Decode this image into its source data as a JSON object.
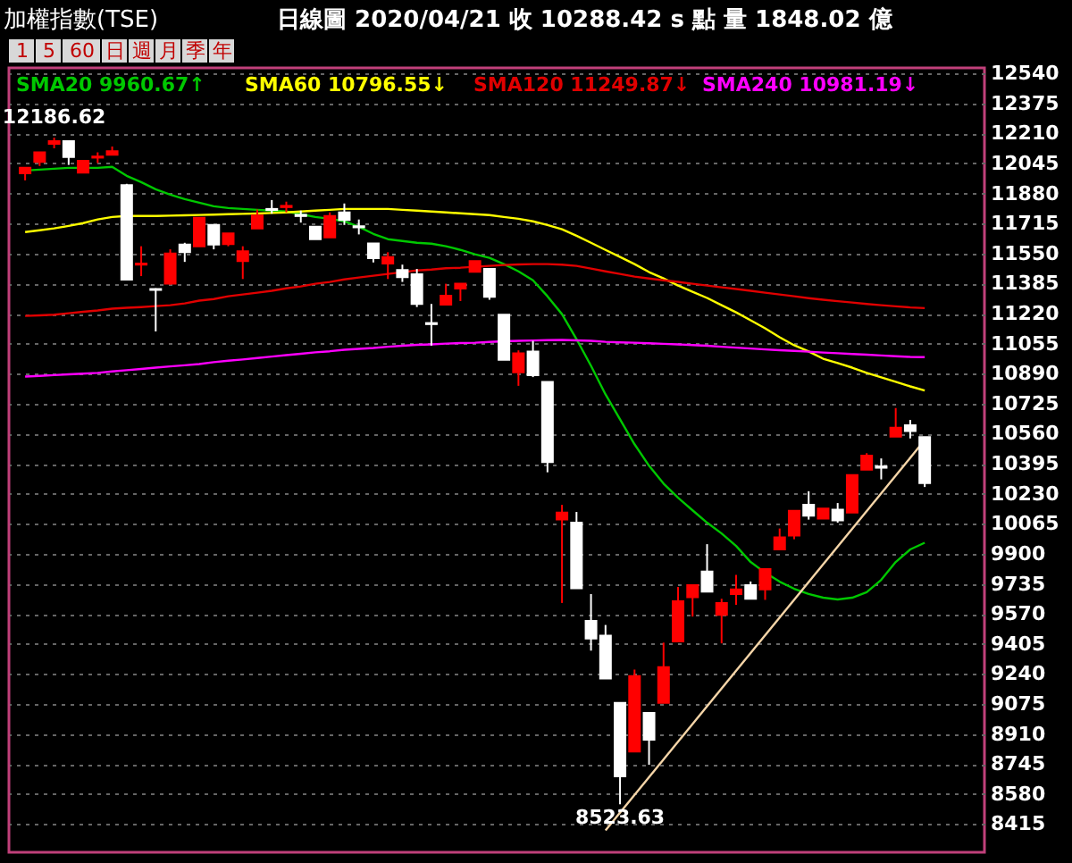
{
  "chart_data": {
    "type": "candlestick",
    "title": "加權指數(TSE)",
    "subtitle": "日線圖 2020/04/21 收 10288.42 s 點 量 1848.02 億",
    "annotations": [
      "1",
      "5",
      "60",
      "日",
      "週",
      "月",
      "季",
      "年",
      {
        "text": "12186.62",
        "y": 12186.62
      },
      {
        "text": "8523.63",
        "y": 8523.63
      }
    ],
    "categories": [
      null,
      null,
      null,
      null,
      null,
      null,
      null,
      null,
      null,
      null,
      null,
      null,
      null,
      null,
      null,
      null,
      null,
      null,
      null,
      null,
      null,
      null,
      null,
      null,
      null,
      null,
      null,
      null,
      null,
      null,
      null,
      null,
      null,
      null,
      null,
      null,
      null,
      null,
      null,
      null,
      null,
      null,
      null,
      null,
      null,
      null,
      null,
      null,
      null,
      null,
      null,
      null,
      null,
      null,
      null,
      null,
      null,
      null,
      null,
      null,
      null,
      null,
      null
    ],
    "ohlc": [
      [
        11991,
        12021,
        11952,
        12021
      ],
      [
        12053,
        12106,
        12031,
        12106
      ],
      [
        12153,
        12186.62,
        12128,
        12168
      ],
      [
        12168,
        12168,
        12037,
        12080
      ],
      [
        11994,
        12060,
        11994,
        12060
      ],
      [
        12077,
        12106,
        12047,
        12083
      ],
      [
        12092,
        12138,
        12092,
        12112
      ],
      [
        11926,
        11933,
        11403,
        11406
      ],
      [
        11489,
        11590,
        11426,
        11495
      ],
      [
        11355,
        11359,
        11122,
        11350
      ],
      [
        11384,
        11573,
        11379,
        11550
      ],
      [
        11599,
        11609,
        11504,
        11557
      ],
      [
        11590,
        11746,
        11590,
        11746
      ],
      [
        11707,
        11707,
        11573,
        11599
      ],
      [
        11602,
        11661,
        11590,
        11661
      ],
      [
        11508,
        11590,
        11410,
        11563
      ],
      [
        11688,
        11792,
        11688,
        11759
      ],
      [
        11795,
        11844,
        11769,
        11789
      ],
      [
        11805,
        11835,
        11776,
        11812
      ],
      [
        11763,
        11786,
        11720,
        11756
      ],
      [
        11697,
        11697,
        11629,
        11629
      ],
      [
        11639,
        11776,
        11639,
        11756
      ],
      [
        11776,
        11825,
        11707,
        11734
      ],
      [
        11700,
        11737,
        11655,
        11694
      ],
      [
        11606,
        11606,
        11501,
        11524
      ],
      [
        11495,
        11557,
        11410,
        11531
      ],
      [
        11459,
        11489,
        11394,
        11420
      ],
      [
        11436,
        11465,
        11256,
        11273
      ],
      [
        11168,
        11273,
        11044,
        11162
      ],
      [
        11269,
        11384,
        11269,
        11318
      ],
      [
        11357,
        11384,
        11289,
        11384
      ],
      [
        11450,
        11508,
        11450,
        11508
      ],
      [
        11465,
        11465,
        11296,
        11312
      ],
      [
        11214,
        11214,
        10966,
        10966
      ],
      [
        10897,
        11018,
        10823,
        11002
      ],
      [
        11012,
        11070,
        10871,
        10881
      ],
      [
        10845,
        10845,
        10348,
        10404
      ],
      [
        10088,
        10169,
        9630,
        10127
      ],
      [
        10071,
        10130,
        9711,
        9711
      ],
      [
        9532,
        9679,
        9368,
        9434
      ],
      [
        9450,
        9509,
        9215,
        9215
      ],
      [
        9081,
        9081,
        8523.63,
        8677
      ],
      [
        8814,
        9264,
        8814,
        9228
      ],
      [
        9026,
        9026,
        8741,
        8879
      ],
      [
        9081,
        9412,
        9081,
        9277
      ],
      [
        9418,
        9718,
        9418,
        9640
      ],
      [
        9662,
        9728,
        9555,
        9728
      ],
      [
        9803,
        9953,
        9692,
        9692
      ],
      [
        9564,
        9653,
        9408,
        9630
      ],
      [
        9679,
        9784,
        9620,
        9705
      ],
      [
        9728,
        9748,
        9653,
        9653
      ],
      [
        9705,
        9816,
        9647,
        9816
      ],
      [
        9924,
        10039,
        9924,
        9990
      ],
      [
        10000,
        10137,
        9980,
        10137
      ],
      [
        10169,
        10244,
        10088,
        10110
      ],
      [
        10094,
        10149,
        10094,
        10149
      ],
      [
        10143,
        10179,
        10071,
        10084
      ],
      [
        10127,
        10333,
        10127,
        10333
      ],
      [
        10362,
        10453,
        10362,
        10440
      ],
      [
        10380,
        10424,
        10309,
        10373
      ],
      [
        10544,
        10701,
        10544,
        10593
      ],
      [
        10607,
        10636,
        10534,
        10574
      ],
      [
        10541,
        10541,
        10267,
        10288.42
      ]
    ],
    "colors": [
      "#ff0000",
      "#ff0000",
      "#ff0000",
      "#ffffff",
      "#ff0000",
      "#ff0000",
      "#ff0000",
      "#ffffff",
      "#ff0000",
      "#ffffff",
      "#ff0000",
      "#ffffff",
      "#ff0000",
      "#ffffff",
      "#ff0000",
      "#ff0000",
      "#ff0000",
      "#ffffff",
      "#ff0000",
      "#ffffff",
      "#ffffff",
      "#ff0000",
      "#ffffff",
      "#ffffff",
      "#ffffff",
      "#ff0000",
      "#ffffff",
      "#ffffff",
      "#ffffff",
      "#ff0000",
      "#ff0000",
      "#ff0000",
      "#ffffff",
      "#ffffff",
      "#ff0000",
      "#ffffff",
      "#ffffff",
      "#ff0000",
      "#ffffff",
      "#ffffff",
      "#ffffff",
      "#ffffff",
      "#ff0000",
      "#ffffff",
      "#ff0000",
      "#ff0000",
      "#ff0000",
      "#ffffff",
      "#ff0000",
      "#ff0000",
      "#ffffff",
      "#ff0000",
      "#ff0000",
      "#ff0000",
      "#ffffff",
      "#ff0000",
      "#ffffff",
      "#ff0000",
      "#ff0000",
      "#ffffff",
      "#ff0000",
      "#ffffff",
      "#ffffff"
    ],
    "series": [
      {
        "type": "line",
        "name": "SMA20 9960.67↑",
        "color": "#00c800",
        "values": [
          12006,
          12011,
          12016,
          12021,
          12021,
          12021,
          12026,
          11977,
          11942,
          11903,
          11874,
          11849,
          11829,
          11810,
          11800,
          11795,
          11790,
          11786,
          11781,
          11766,
          11751,
          11741,
          11727,
          11697,
          11658,
          11629,
          11619,
          11609,
          11604,
          11590,
          11570,
          11546,
          11526,
          11492,
          11452,
          11403,
          11315,
          11217,
          11080,
          10933,
          10776,
          10639,
          10502,
          10384,
          10286,
          10208,
          10139,
          10071,
          10012,
          9943,
          9855,
          9796,
          9747,
          9708,
          9679,
          9659,
          9649,
          9659,
          9689,
          9757,
          9855,
          9924,
          9961
        ]
      },
      {
        "type": "line",
        "name": "SMA60 10796.55↓",
        "color": "#ffff00",
        "values": [
          11668,
          11678,
          11688,
          11702,
          11717,
          11737,
          11751,
          11756,
          11756,
          11756,
          11758,
          11760,
          11762,
          11764,
          11766,
          11768,
          11770,
          11773,
          11776,
          11781,
          11786,
          11790,
          11795,
          11795,
          11795,
          11795,
          11790,
          11786,
          11781,
          11776,
          11771,
          11766,
          11761,
          11751,
          11741,
          11727,
          11707,
          11683,
          11648,
          11609,
          11570,
          11531,
          11492,
          11448,
          11413,
          11374,
          11340,
          11306,
          11266,
          11227,
          11183,
          11139,
          11090,
          11046,
          11012,
          10972,
          10948,
          10923,
          10894,
          10870,
          10845,
          10820,
          10797
        ]
      },
      {
        "type": "line",
        "name": "SMA120 11249.87↓",
        "color": "#e00000",
        "values": [
          11207,
          11210,
          11214,
          11222,
          11230,
          11237,
          11247,
          11252,
          11256,
          11261,
          11266,
          11276,
          11291,
          11300,
          11315,
          11325,
          11335,
          11345,
          11359,
          11369,
          11384,
          11394,
          11408,
          11418,
          11428,
          11438,
          11448,
          11457,
          11462,
          11469,
          11472,
          11477,
          11482,
          11487,
          11490,
          11492,
          11492,
          11489,
          11482,
          11467,
          11452,
          11438,
          11423,
          11413,
          11403,
          11394,
          11384,
          11374,
          11364,
          11355,
          11345,
          11335,
          11325,
          11315,
          11305,
          11296,
          11288,
          11281,
          11273,
          11266,
          11260,
          11254,
          11250
        ]
      },
      {
        "type": "line",
        "name": "SMA240 10981.19↓",
        "color": "#ff00ff",
        "values": [
          10874,
          10878,
          10882,
          10886,
          10890,
          10894,
          10902,
          10909,
          10916,
          10923,
          10930,
          10936,
          10943,
          10953,
          10961,
          10968,
          10976,
          10984,
          10992,
          10999,
          11007,
          11013,
          11021,
          11026,
          11031,
          11038,
          11043,
          11048,
          11051,
          11055,
          11058,
          11060,
          11064,
          11068,
          11070,
          11072,
          11074,
          11075,
          11073,
          11070,
          11065,
          11062,
          11060,
          11057,
          11054,
          11051,
          11047,
          11043,
          11038,
          11033,
          11028,
          11023,
          11019,
          11015,
          11011,
          11006,
          11002,
          10998,
          10994,
          10990,
          10986,
          10982,
          10981
        ]
      },
      {
        "type": "line",
        "color": "#f5d5a8",
        "values": [
          null,
          null,
          null,
          null,
          null,
          null,
          null,
          null,
          null,
          null,
          null,
          null,
          null,
          null,
          null,
          null,
          null,
          null,
          null,
          null,
          null,
          null,
          null,
          null,
          null,
          null,
          null,
          null,
          null,
          null,
          null,
          null,
          null,
          null,
          null,
          null,
          null,
          null,
          null,
          null,
          8380,
          null,
          null,
          null,
          null,
          null,
          null,
          null,
          null,
          null,
          null,
          null,
          null,
          null,
          null,
          null,
          null,
          null,
          null,
          null,
          null,
          null,
          10525
        ]
      }
    ],
    "ylim": [
      8260,
      12570
    ],
    "yticks": [
      8415,
      8580,
      8745,
      8910,
      9075,
      9240,
      9405,
      9570,
      9735,
      9900,
      10065,
      10230,
      10395,
      10560,
      10725,
      10890,
      11055,
      11220,
      11385,
      11550,
      11715,
      11880,
      12045,
      12210,
      12375,
      12540
    ],
    "grid": "y",
    "legend": "top left"
  }
}
